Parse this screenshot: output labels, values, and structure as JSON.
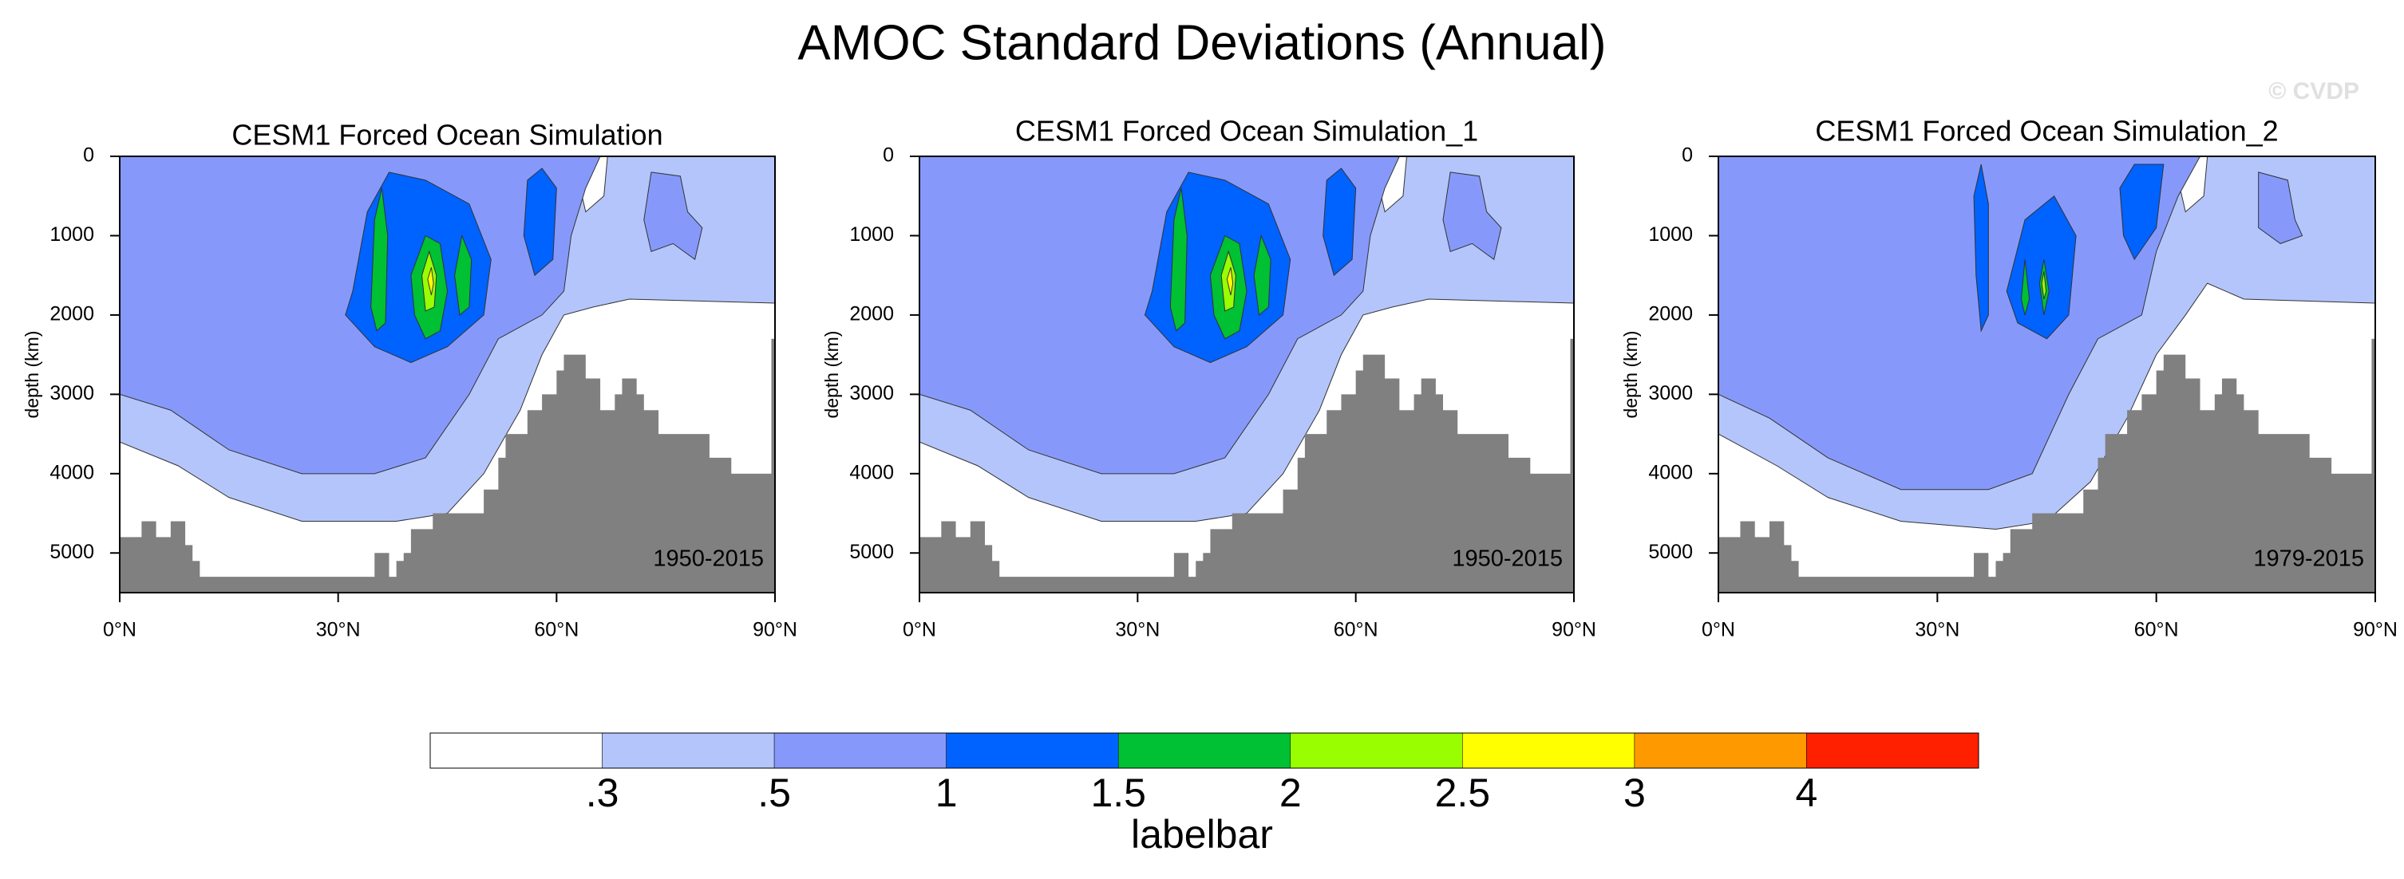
{
  "title": "AMOC Standard Deviations (Annual)",
  "watermark": "© CVDP",
  "chart_data": [
    {
      "type": "contour",
      "title": "CESM1 Forced Ocean Simulation",
      "annotation": "1950-2015",
      "ylabel": "depth (km)",
      "xlim": [
        0,
        90
      ],
      "xticks": [
        {
          "value": 0,
          "label": "0°N"
        },
        {
          "value": 30,
          "label": "30°N"
        },
        {
          "value": 60,
          "label": "60°N"
        },
        {
          "value": 90,
          "label": "90°N"
        }
      ],
      "ylim": [
        5500,
        0
      ],
      "yticks": [
        0,
        1000,
        2000,
        3000,
        4000,
        5000
      ],
      "topography_color": "#808080"
    },
    {
      "type": "contour",
      "title": "CESM1 Forced Ocean Simulation_1",
      "annotation": "1950-2015",
      "ylabel": "depth (km)",
      "xlim": [
        0,
        90
      ],
      "xticks": [
        {
          "value": 0,
          "label": "0°N"
        },
        {
          "value": 30,
          "label": "30°N"
        },
        {
          "value": 60,
          "label": "60°N"
        },
        {
          "value": 90,
          "label": "90°N"
        }
      ],
      "ylim": [
        5500,
        0
      ],
      "yticks": [
        0,
        1000,
        2000,
        3000,
        4000,
        5000
      ],
      "topography_color": "#808080"
    },
    {
      "type": "contour",
      "title": "CESM1 Forced Ocean Simulation_2",
      "annotation": "1979-2015",
      "ylabel": "depth (km)",
      "xlim": [
        0,
        90
      ],
      "xticks": [
        {
          "value": 0,
          "label": "0°N"
        },
        {
          "value": 30,
          "label": "30°N"
        },
        {
          "value": 60,
          "label": "60°N"
        },
        {
          "value": 90,
          "label": "90°N"
        }
      ],
      "ylim": [
        5500,
        0
      ],
      "yticks": [
        0,
        1000,
        2000,
        3000,
        4000,
        5000
      ],
      "topography_color": "#808080"
    }
  ],
  "colorbar": {
    "title": "labelbar",
    "levels": [
      {
        "value": 0.3,
        "label": ".3"
      },
      {
        "value": 0.5,
        "label": ".5"
      },
      1,
      1.5,
      2,
      2.5,
      3,
      4
    ],
    "colors": [
      "#ffffff",
      "#b4c5fb",
      "#8699fb",
      "#0062ff",
      "#00c034",
      "#99ff00",
      "#ffff00",
      "#ff9900",
      "#ff2000"
    ]
  }
}
